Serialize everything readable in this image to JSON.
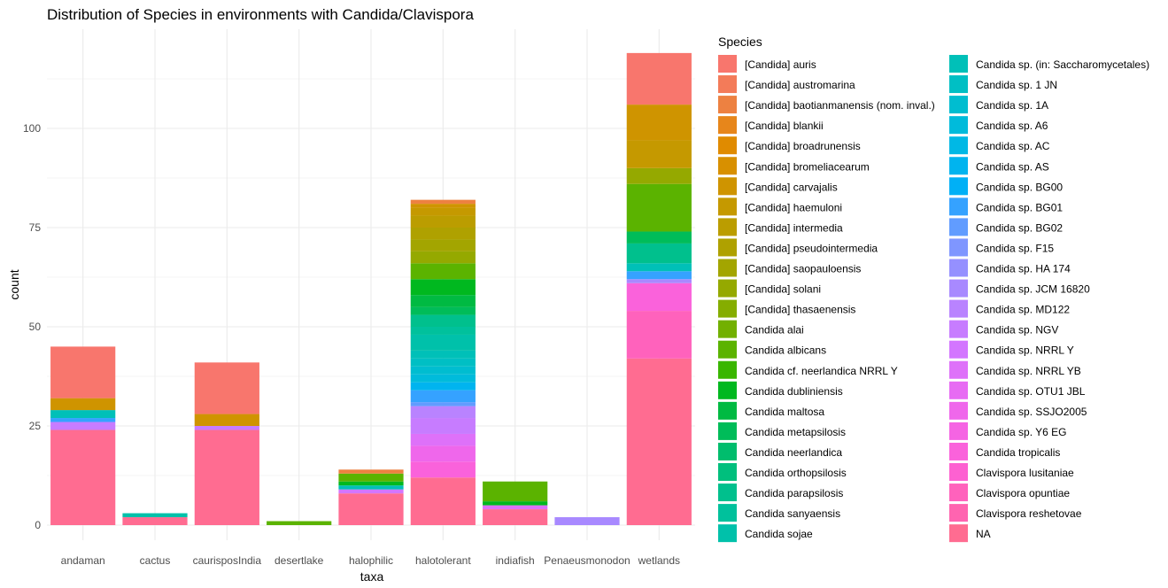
{
  "chart_data": {
    "type": "bar",
    "stacked": true,
    "title": "Distribution of Species in environments with Candida/Clavispora",
    "xlabel": "taxa",
    "ylabel": "count",
    "ylim": [
      0,
      119
    ],
    "y_ticks": [
      0,
      25,
      50,
      75,
      100
    ],
    "grid": true,
    "legend_position": "right",
    "legend_title": "Species",
    "categories": [
      "andaman",
      "cactus",
      "caurisposIndia",
      "desertlake",
      "halophilic",
      "halotolerant",
      "indiafish",
      "Penaeusmonodon",
      "wetlands"
    ],
    "series": [
      {
        "name": "[Candida] auris",
        "color": "#F8766D",
        "values": [
          13,
          0,
          13,
          0,
          0,
          0,
          0,
          0,
          13
        ]
      },
      {
        "name": "[Candida] austromarina",
        "color": "#F37B59",
        "values": [
          0,
          0,
          0,
          0,
          0,
          0,
          0,
          0,
          0
        ]
      },
      {
        "name": "[Candida] baotianmanensis (nom. inval.)",
        "color": "#ED8141",
        "values": [
          0,
          0,
          0,
          0,
          1,
          1,
          0,
          0,
          0
        ]
      },
      {
        "name": "[Candida] blankii",
        "color": "#E7861B",
        "values": [
          0,
          0,
          0,
          0,
          0,
          0,
          0,
          0,
          0
        ]
      },
      {
        "name": "[Candida] broadrunensis",
        "color": "#E08B00",
        "values": [
          0,
          0,
          0,
          0,
          0,
          0,
          0,
          0,
          0
        ]
      },
      {
        "name": "[Candida] bromeliacearum",
        "color": "#D89000",
        "values": [
          0,
          0,
          0,
          0,
          0,
          0,
          0,
          0,
          0
        ]
      },
      {
        "name": "[Candida] carvajalis",
        "color": "#CF9400",
        "values": [
          3,
          0,
          3,
          0,
          0,
          1,
          0,
          0,
          9
        ]
      },
      {
        "name": "[Candida] haemuloni",
        "color": "#C59900",
        "values": [
          0,
          0,
          0,
          0,
          0,
          2,
          0,
          0,
          7
        ]
      },
      {
        "name": "[Candida] intermedia",
        "color": "#BB9D00",
        "values": [
          0,
          0,
          0,
          0,
          0,
          3,
          0,
          0,
          0
        ]
      },
      {
        "name": "[Candida] pseudointermedia",
        "color": "#AFA100",
        "values": [
          0,
          0,
          0,
          0,
          0,
          3,
          0,
          0,
          0
        ]
      },
      {
        "name": "[Candida] saopauloensis",
        "color": "#A3A500",
        "values": [
          0,
          0,
          0,
          0,
          0,
          3,
          0,
          0,
          0
        ]
      },
      {
        "name": "[Candida] solani",
        "color": "#95A900",
        "values": [
          0,
          0,
          0,
          0,
          0,
          3,
          0,
          0,
          4
        ]
      },
      {
        "name": "[Candida] thasaenensis",
        "color": "#85AD00",
        "values": [
          0,
          0,
          0,
          0,
          0,
          0,
          0,
          0,
          0
        ]
      },
      {
        "name": "Candida alai",
        "color": "#72B000",
        "values": [
          0,
          0,
          0,
          0,
          0,
          0,
          0,
          0,
          0
        ]
      },
      {
        "name": "Candida albicans",
        "color": "#5BB300",
        "values": [
          0,
          0,
          0,
          1,
          2,
          4,
          5,
          0,
          12
        ]
      },
      {
        "name": "Candida cf. neerlandica NRRL Y",
        "color": "#39B600",
        "values": [
          0,
          0,
          0,
          0,
          0,
          0,
          0,
          0,
          0
        ]
      },
      {
        "name": "Candida dubliniensis",
        "color": "#00B81F",
        "values": [
          0,
          0,
          0,
          0,
          1,
          4,
          1,
          0,
          0
        ]
      },
      {
        "name": "Candida maltosa",
        "color": "#00BA42",
        "values": [
          0,
          0,
          0,
          0,
          0,
          3,
          0,
          0,
          0
        ]
      },
      {
        "name": "Candida metapsilosis",
        "color": "#00BC59",
        "values": [
          0,
          0,
          0,
          0,
          0,
          2,
          0,
          0,
          3
        ]
      },
      {
        "name": "Candida neerlandica",
        "color": "#00BD6D",
        "values": [
          0,
          0,
          0,
          0,
          0,
          0,
          0,
          0,
          0
        ]
      },
      {
        "name": "Candida orthopsilosis",
        "color": "#00BF7D",
        "values": [
          0,
          0,
          0,
          0,
          0,
          0,
          0,
          0,
          0
        ]
      },
      {
        "name": "Candida parapsilosis",
        "color": "#00C08D",
        "values": [
          0,
          0,
          0,
          0,
          0,
          3,
          0,
          0,
          5
        ]
      },
      {
        "name": "Candida sanyaensis",
        "color": "#00C19C",
        "values": [
          0,
          0,
          0,
          0,
          0,
          2,
          0,
          0,
          0
        ]
      },
      {
        "name": "Candida sojae",
        "color": "#00C1AA",
        "values": [
          0,
          1,
          0,
          0,
          0,
          4,
          0,
          0,
          0
        ]
      },
      {
        "name": "Candida sp. (in: Saccharomycetales)",
        "color": "#00C0B8",
        "values": [
          2,
          0,
          0,
          0,
          1,
          2,
          0,
          0,
          2
        ]
      },
      {
        "name": "Candida sp. 1 JN",
        "color": "#00BFC4",
        "values": [
          0,
          0,
          0,
          0,
          0,
          2,
          0,
          0,
          0
        ]
      },
      {
        "name": "Candida sp. 1A",
        "color": "#00BDD0",
        "values": [
          0,
          0,
          0,
          0,
          0,
          2,
          0,
          0,
          0
        ]
      },
      {
        "name": "Candida sp. A6",
        "color": "#00BBDB",
        "values": [
          0,
          0,
          0,
          0,
          0,
          2,
          0,
          0,
          0
        ]
      },
      {
        "name": "Candida sp. AC",
        "color": "#00B8E5",
        "values": [
          0,
          0,
          0,
          0,
          0,
          0,
          0,
          0,
          0
        ]
      },
      {
        "name": "Candida sp. AS",
        "color": "#00B4EF",
        "values": [
          0,
          0,
          0,
          0,
          0,
          2,
          0,
          0,
          0
        ]
      },
      {
        "name": "Candida sp. BG00",
        "color": "#00B0F6",
        "values": [
          0,
          0,
          0,
          0,
          0,
          0,
          0,
          0,
          0
        ]
      },
      {
        "name": "Candida sp. BG01",
        "color": "#35A2FF",
        "values": [
          1,
          0,
          0,
          0,
          0,
          3,
          0,
          0,
          2
        ]
      },
      {
        "name": "Candida sp. BG02",
        "color": "#619CFF",
        "values": [
          0,
          0,
          0,
          0,
          0,
          1,
          0,
          0,
          0
        ]
      },
      {
        "name": "Candida sp. F15",
        "color": "#7F96FF",
        "values": [
          0,
          0,
          0,
          0,
          0,
          0,
          0,
          0,
          0
        ]
      },
      {
        "name": "Candida sp. HA 174",
        "color": "#9590FF",
        "values": [
          0,
          0,
          0,
          0,
          0,
          0,
          0,
          0,
          0
        ]
      },
      {
        "name": "Candida sp. JCM 16820",
        "color": "#A889FF",
        "values": [
          0,
          0,
          0,
          0,
          0,
          0,
          0,
          2,
          1
        ]
      },
      {
        "name": "Candida sp. MD122",
        "color": "#B983FF",
        "values": [
          0,
          0,
          0,
          0,
          0,
          3,
          0,
          0,
          0
        ]
      },
      {
        "name": "Candida sp. NGV",
        "color": "#C77CFF",
        "values": [
          2,
          0,
          1,
          0,
          0,
          4,
          0,
          0,
          0
        ]
      },
      {
        "name": "Candida sp. NRRL Y",
        "color": "#D376FF",
        "values": [
          0,
          0,
          0,
          0,
          1,
          0,
          0,
          0,
          0
        ]
      },
      {
        "name": "Candida sp. NRRL YB",
        "color": "#DE71F9",
        "values": [
          0,
          0,
          0,
          0,
          0,
          3,
          1,
          0,
          0
        ]
      },
      {
        "name": "Candida sp. OTU1 JBL",
        "color": "#E76BF3",
        "values": [
          0,
          0,
          0,
          0,
          0,
          0,
          0,
          0,
          0
        ]
      },
      {
        "name": "Candida sp. SSJO2005",
        "color": "#EF67EB",
        "values": [
          0,
          0,
          0,
          0,
          0,
          4,
          0,
          0,
          0
        ]
      },
      {
        "name": "Candida sp. Y6 EG",
        "color": "#F564E3",
        "values": [
          0,
          0,
          0,
          0,
          0,
          0,
          0,
          0,
          0
        ]
      },
      {
        "name": "Candida tropicalis",
        "color": "#FA62DB",
        "values": [
          0,
          0,
          0,
          0,
          0,
          4,
          0,
          0,
          7
        ]
      },
      {
        "name": "Clavispora lusitaniae",
        "color": "#FD61D1",
        "values": [
          0,
          0,
          0,
          0,
          0,
          0,
          0,
          0,
          0
        ]
      },
      {
        "name": "Clavispora opuntiae",
        "color": "#FF62BC",
        "values": [
          0,
          0,
          0,
          0,
          0,
          0,
          0,
          0,
          12
        ]
      },
      {
        "name": "Clavispora reshetovae",
        "color": "#FF64B0",
        "values": [
          0,
          0,
          0,
          0,
          0,
          0,
          0,
          0,
          0
        ]
      },
      {
        "name": "NA",
        "color": "#FF6C91",
        "values": [
          24,
          2,
          24,
          0,
          8,
          12,
          4,
          0,
          42
        ]
      }
    ]
  }
}
